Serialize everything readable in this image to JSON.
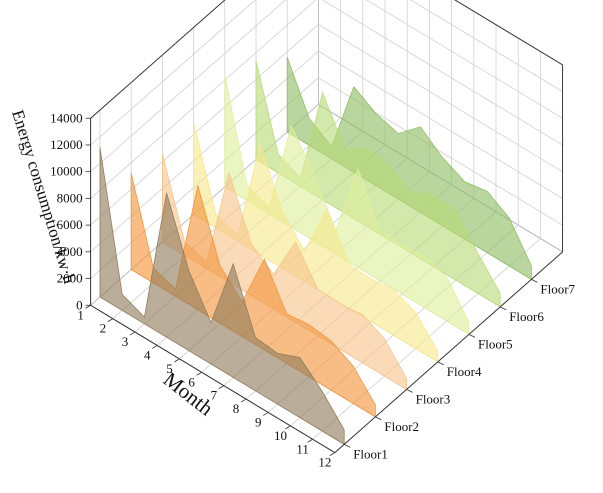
{
  "chart_data": {
    "type": "area",
    "ylabel": "Energy consumption/kw·h",
    "xlabel": "Month",
    "x": [
      1,
      2,
      3,
      4,
      5,
      6,
      7,
      8,
      9,
      10,
      11,
      12
    ],
    "zlim": [
      0,
      14000
    ],
    "z_ticks": [
      0,
      2000,
      4000,
      6000,
      8000,
      10000,
      12000,
      14000
    ],
    "grid": true,
    "series": [
      {
        "name": "Floor1",
        "color": "#8f7a5a",
        "values": [
          11200,
          1200,
          500,
          10800,
          6000,
          3100,
          8500,
          4000,
          3800,
          4500,
          3000,
          1100
        ]
      },
      {
        "name": "Floor2",
        "color": "#f2943a",
        "values": [
          7200,
          1100,
          550,
          9300,
          4300,
          2600,
          6800,
          3700,
          3900,
          3700,
          2800,
          900
        ]
      },
      {
        "name": "Floor3",
        "color": "#f7c48a",
        "values": [
          6600,
          1000,
          500,
          8200,
          3900,
          2600,
          6000,
          3500,
          3400,
          3600,
          2800,
          800
        ]
      },
      {
        "name": "Floor4",
        "color": "#f6e98c",
        "values": [
          6900,
          1000,
          500,
          8300,
          4200,
          2300,
          6400,
          3300,
          3200,
          3400,
          2700,
          800
        ]
      },
      {
        "name": "Floor5",
        "color": "#dfef9b",
        "values": [
          8400,
          1100,
          500,
          7600,
          5000,
          1800,
          7400,
          3700,
          3600,
          3800,
          3300,
          900
        ]
      },
      {
        "name": "Floor6",
        "color": "#b8da78",
        "values": [
          7400,
          1400,
          600,
          8000,
          4800,
          5800,
          5600,
          4600,
          5400,
          5200,
          3000,
          1000
        ]
      },
      {
        "name": "Floor7",
        "color": "#8ebd62",
        "values": [
          5600,
          2000,
          900,
          6400,
          5400,
          4900,
          6400,
          5100,
          4300,
          4600,
          3600,
          1000
        ]
      }
    ]
  }
}
